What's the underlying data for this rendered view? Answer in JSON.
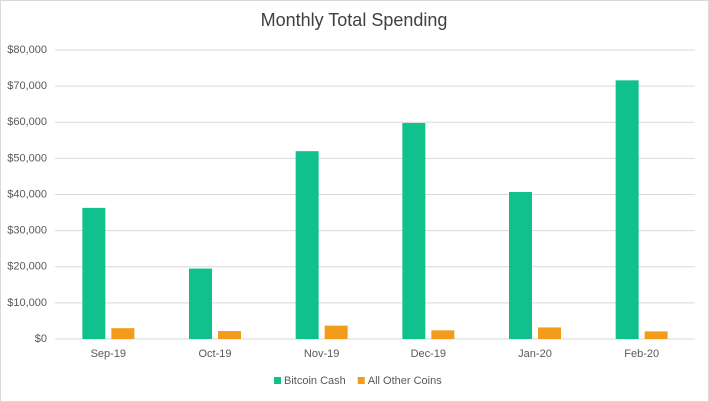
{
  "chart_data": {
    "type": "bar",
    "title": "Monthly Total Spending",
    "categories": [
      "Sep-19",
      "Oct-19",
      "Nov-19",
      "Dec-19",
      "Jan-20",
      "Feb-20"
    ],
    "series": [
      {
        "name": "Bitcoin Cash",
        "color": "#10c18d",
        "values": [
          36300,
          19500,
          52000,
          59800,
          40700,
          71600
        ]
      },
      {
        "name": "All Other Coins",
        "color": "#f39b1b",
        "values": [
          3000,
          2200,
          3700,
          2400,
          3200,
          2100
        ]
      }
    ],
    "ylim": [
      0,
      80000
    ],
    "yticks": [
      {
        "value": 0,
        "label": "$0"
      },
      {
        "value": 10000,
        "label": "$10,000"
      },
      {
        "value": 20000,
        "label": "$20,000"
      },
      {
        "value": 30000,
        "label": "$30,000"
      },
      {
        "value": 40000,
        "label": "$40,000"
      },
      {
        "value": 50000,
        "label": "$50,000"
      },
      {
        "value": 60000,
        "label": "$60,000"
      },
      {
        "value": 70000,
        "label": "$70,000"
      },
      {
        "value": 80000,
        "label": "$80,000"
      }
    ],
    "grid": true,
    "legend": "bottom"
  }
}
